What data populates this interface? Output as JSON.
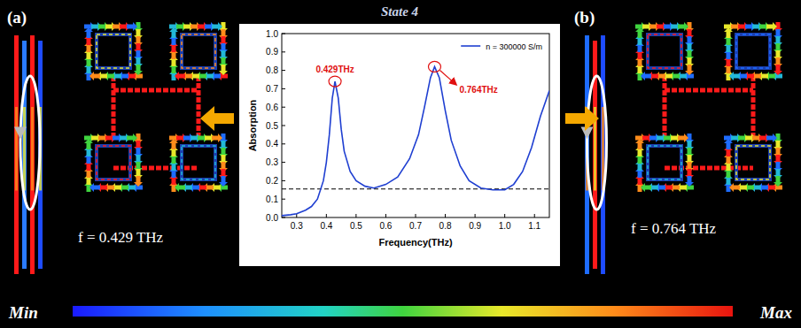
{
  "chart_data": {
    "type": "line",
    "title": "State 4",
    "x_label": "Frequency(THz)",
    "y_label": "Absorption",
    "x": [
      0.25,
      0.28,
      0.3,
      0.33,
      0.35,
      0.37,
      0.39,
      0.4,
      0.41,
      0.42,
      0.429,
      0.44,
      0.45,
      0.46,
      0.48,
      0.5,
      0.53,
      0.56,
      0.6,
      0.64,
      0.68,
      0.71,
      0.73,
      0.75,
      0.764,
      0.78,
      0.8,
      0.82,
      0.85,
      0.88,
      0.92,
      0.96,
      1.0,
      1.03,
      1.06,
      1.09,
      1.12,
      1.15
    ],
    "series": [
      {
        "name": "n = 300000 S/m",
        "color": "#1f3fd1",
        "line_style": "solid",
        "values": [
          0.01,
          0.015,
          0.02,
          0.04,
          0.06,
          0.1,
          0.2,
          0.3,
          0.45,
          0.65,
          0.74,
          0.65,
          0.48,
          0.36,
          0.25,
          0.2,
          0.17,
          0.16,
          0.18,
          0.22,
          0.32,
          0.45,
          0.6,
          0.76,
          0.82,
          0.76,
          0.58,
          0.42,
          0.28,
          0.2,
          0.16,
          0.15,
          0.15,
          0.18,
          0.25,
          0.38,
          0.55,
          0.69
        ]
      }
    ],
    "reference_y": 0.155,
    "annotations": [
      {
        "text": "0.429THz",
        "x": 0.429,
        "y": 0.74
      },
      {
        "text": "0.764THz",
        "x": 0.764,
        "y": 0.82
      }
    ],
    "xlim": [
      0.25,
      1.15
    ],
    "xticks": [
      0.3,
      0.4,
      0.5,
      0.6,
      0.7,
      0.8,
      0.9,
      {
        "value": 1.0,
        "label": "1.0"
      },
      1.1
    ],
    "ylim": [
      0,
      1
    ],
    "yticks": [
      {
        "value": 0,
        "label": "0.0"
      },
      0.1,
      0.2,
      0.3,
      0.4,
      0.5,
      0.6,
      0.7,
      0.8,
      0.9,
      {
        "value": 1,
        "label": "1.0"
      }
    ],
    "legend": "upper-right",
    "grid": false
  },
  "figure": {
    "panels": [
      {
        "label": "(a)",
        "caption": "f = 0.429 THz"
      },
      {
        "label": "(b)",
        "caption": "f = 0.764 THz"
      }
    ],
    "colorbar": {
      "min_label": "Min",
      "max_label": "Max"
    }
  }
}
